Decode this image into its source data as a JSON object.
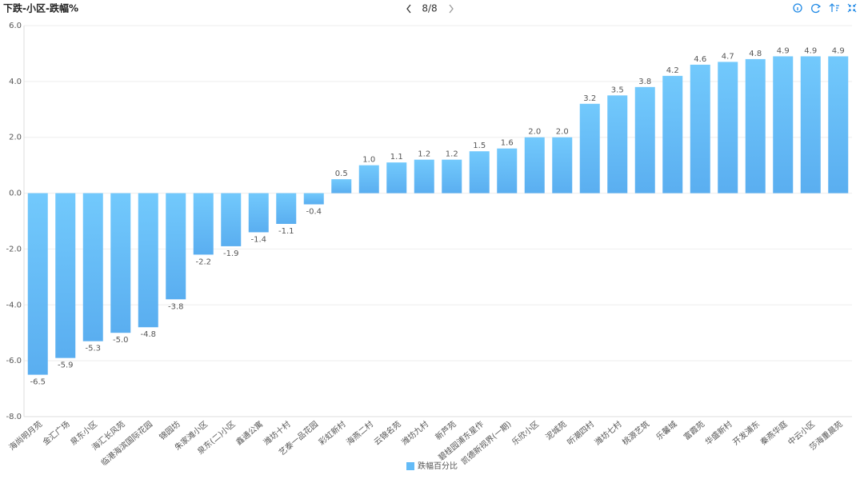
{
  "chart_data": {
    "type": "bar",
    "title": "下跌-小区-跌幅%",
    "pager": "8/8",
    "categories": [
      "海尚明月苑",
      "金汇广场",
      "泉东小区",
      "海汇长风苑",
      "临港海滨国际花园",
      "锦园坊",
      "朱家滩小区",
      "泉东(二)小区",
      "鑫通公寓",
      "潍坊十村",
      "艺泰一品花园",
      "彩虹新村",
      "海燕二村",
      "云锦名苑",
      "潍坊九村",
      "新芦苑",
      "碧桂园浦东星作",
      "凯德新视界(一期)",
      "乐欣小区",
      "泥城苑",
      "听潮四村",
      "潍坊七村",
      "桃源艺筑",
      "乐馨城",
      "富霞苑",
      "华盛新村",
      "开发浦东",
      "秦燕华庭",
      "中云小区",
      "莎海重晨苑"
    ],
    "series": [
      {
        "name": "跌幅百分比",
        "color": "#63bbf7",
        "values": [
          -6.5,
          -5.9,
          -5.3,
          -5.0,
          -4.8,
          -3.8,
          -2.2,
          -1.9,
          -1.4,
          -1.1,
          -0.4,
          0.5,
          1.0,
          1.1,
          1.2,
          1.2,
          1.5,
          1.6,
          2.0,
          2.0,
          3.2,
          3.5,
          3.8,
          4.2,
          4.6,
          4.7,
          4.8,
          4.9,
          4.9,
          4.9
        ],
        "value_labels": [
          "-6.5",
          "-5.9",
          "-5.3",
          "-5.0",
          "-4.8",
          "-3.8",
          "-2.2",
          "-1.9",
          "-1.4",
          "-1.1",
          "-0.4",
          "0.5",
          "1.0",
          "1.1",
          "1.2",
          "1.2",
          "1.5",
          "1.6",
          "2.0",
          "2.0",
          "3.2",
          "3.5",
          "3.8",
          "4.2",
          "4.6",
          "4.7",
          "4.8",
          "4.9",
          "4.9",
          "4.9"
        ]
      }
    ],
    "ylim": [
      -8,
      6
    ],
    "yticks": [
      {
        "value": -8,
        "label": "-8.0"
      },
      {
        "value": -6,
        "label": "-6.0"
      },
      {
        "value": -4,
        "label": "-4.0"
      },
      {
        "value": -2,
        "label": "-2.0"
      },
      {
        "value": 0,
        "label": "0.0"
      },
      {
        "value": 2,
        "label": "2.0"
      },
      {
        "value": 4,
        "label": "4.0"
      },
      {
        "value": 6,
        "label": "6.0"
      }
    ],
    "grid": true
  }
}
